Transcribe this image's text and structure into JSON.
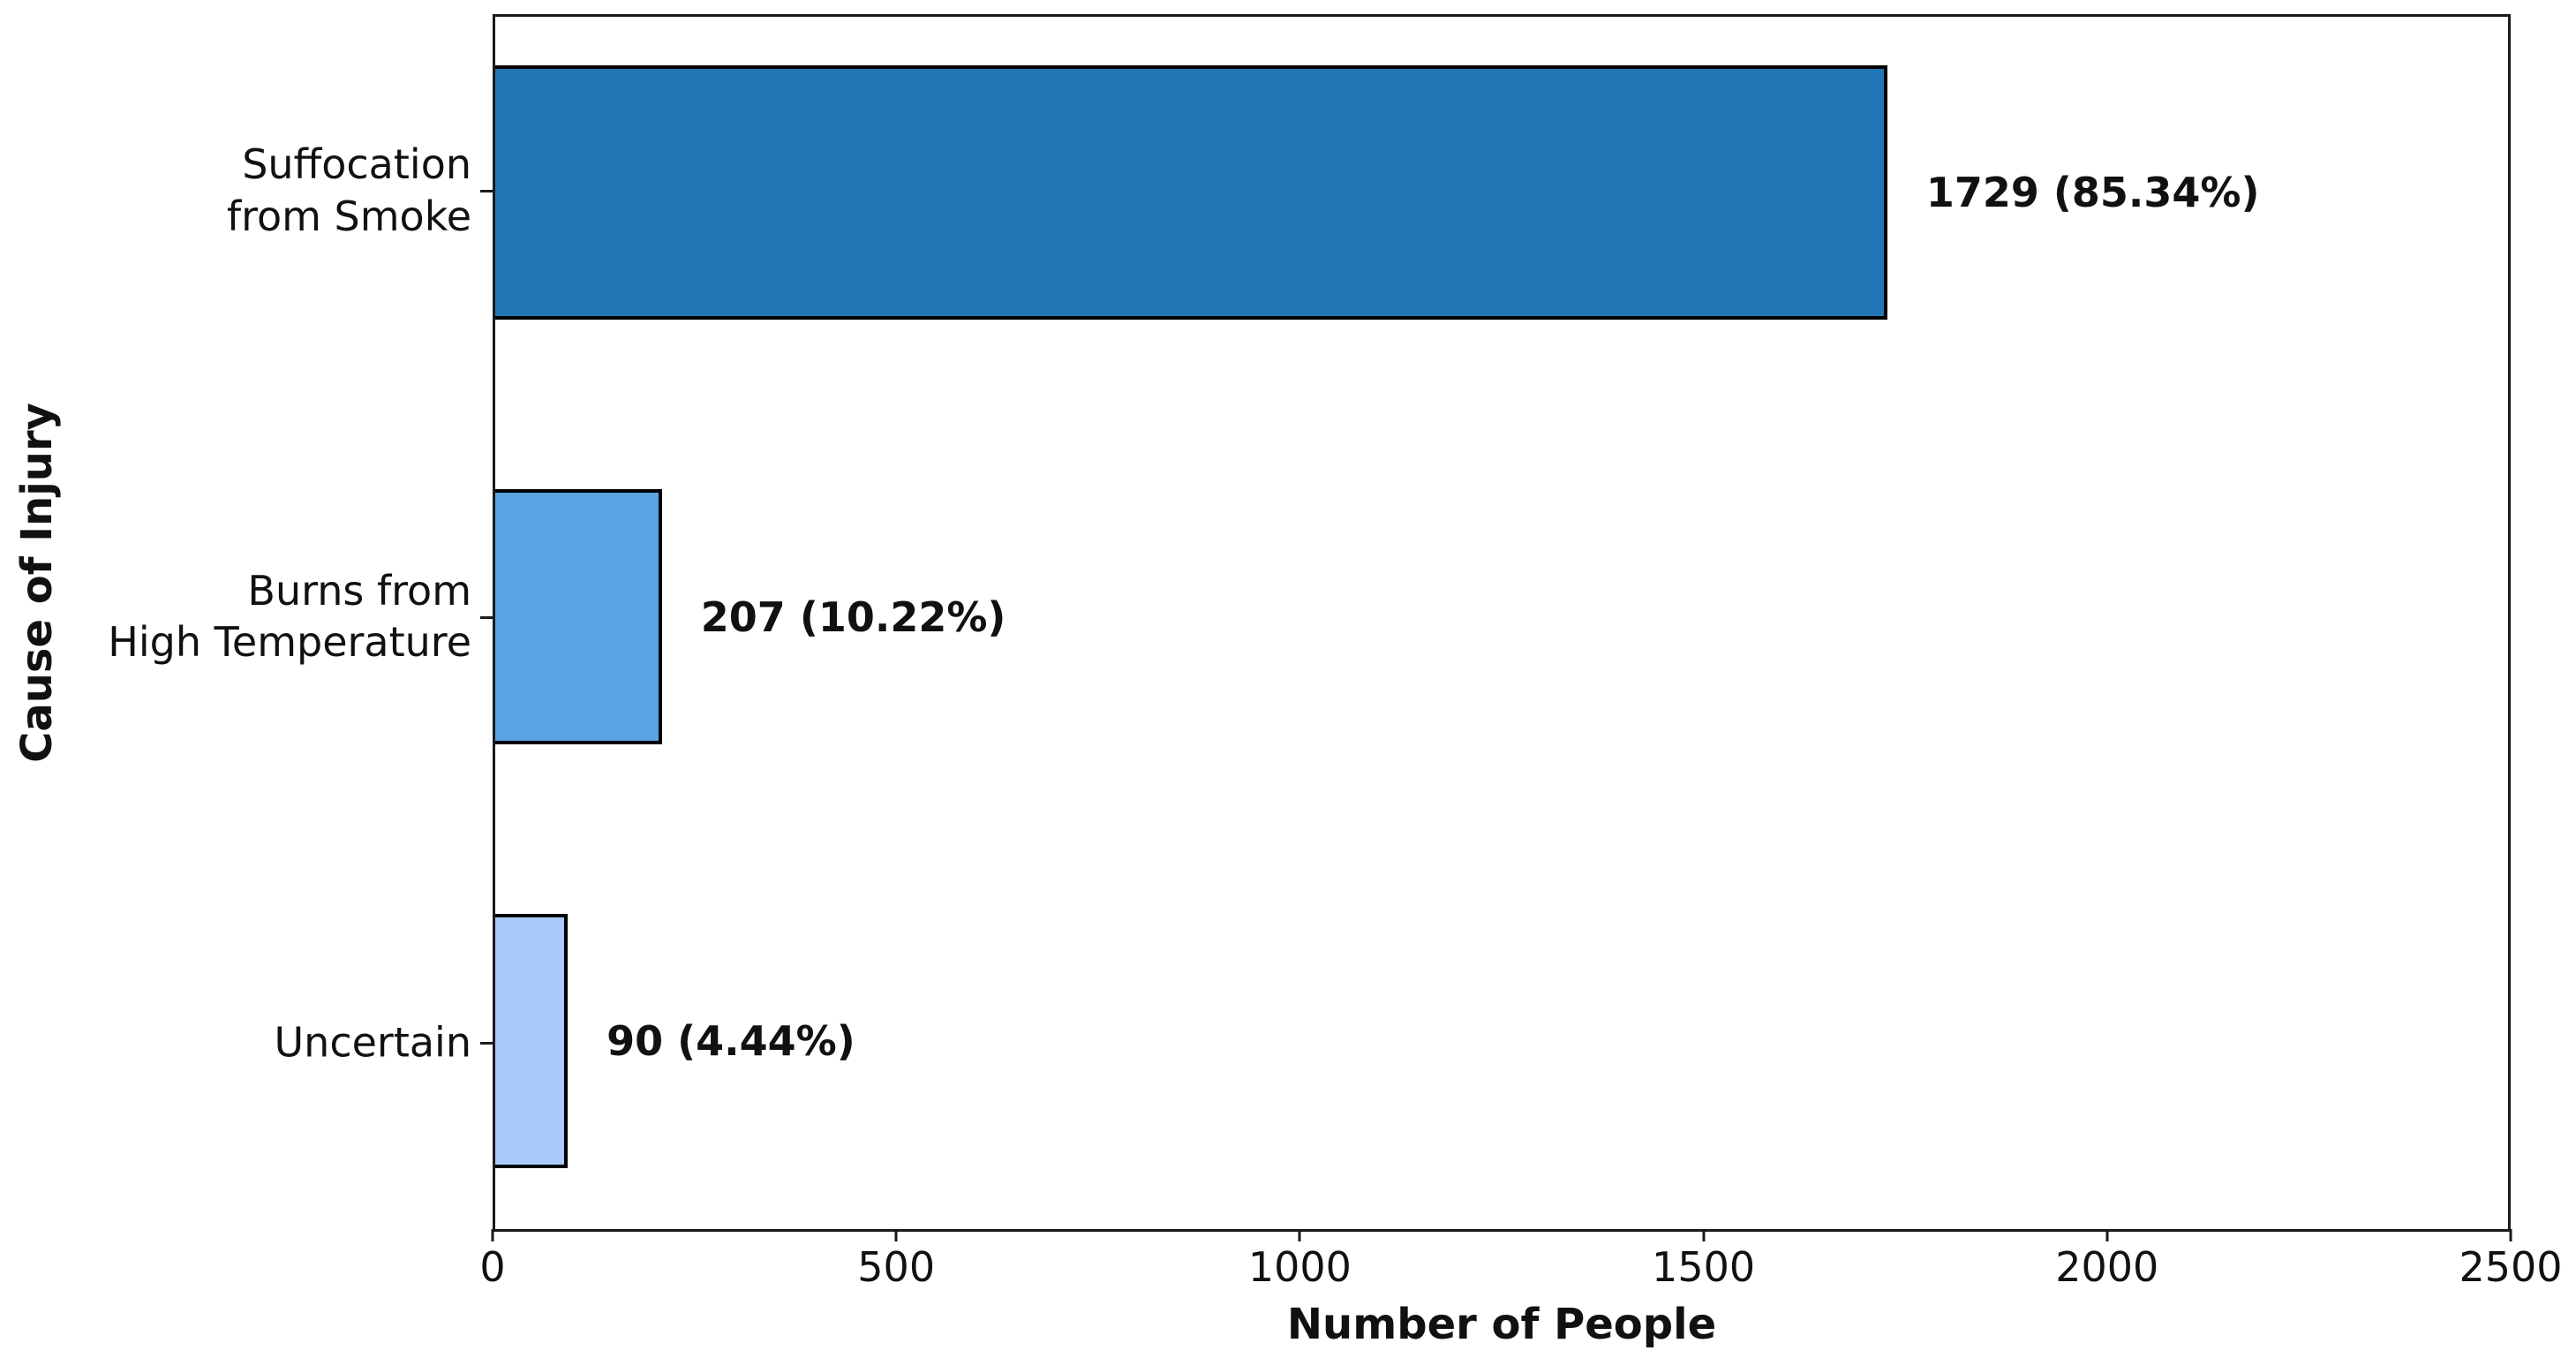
{
  "chart_data": {
    "type": "bar",
    "orientation": "horizontal",
    "title": "",
    "xlabel": "Number of People",
    "ylabel": "Cause of Injury",
    "xlim": [
      0,
      2500
    ],
    "xticks": [
      0,
      500,
      1000,
      1500,
      2000,
      2500
    ],
    "xtick_labels": [
      "0",
      "500",
      "1000",
      "1500",
      "2000",
      "2500"
    ],
    "grid": false,
    "legend": false,
    "bar_edge_color": "#000000",
    "categories": [
      "Suffocation\nfrom Smoke",
      "Burns from\nHigh Temperature",
      "Uncertain"
    ],
    "values": [
      1729,
      207,
      90
    ],
    "percentages": [
      85.34,
      10.22,
      4.44
    ],
    "rows": [
      {
        "category": "Suffocation\nfrom Smoke",
        "value": 1729,
        "percent": 85.34,
        "value_label": "1729 (85.34%)",
        "color": "#2177b5"
      },
      {
        "category": "Burns from\nHigh Temperature",
        "value": 207,
        "percent": 10.22,
        "value_label": "207 (10.22%)",
        "color": "#5ba4e3"
      },
      {
        "category": "Uncertain",
        "value": 90,
        "percent": 4.44,
        "value_label": "90 (4.44%)",
        "color": "#aac8fa"
      }
    ]
  }
}
